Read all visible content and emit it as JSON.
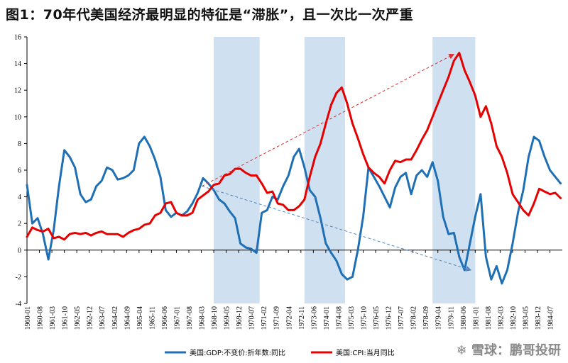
{
  "page_title": "图1：70年代美国经济最明显的特征是“滞胀”，且一次比一次严重",
  "watermark": "❄ 雪球：鹏哥投研",
  "chart_data": {
    "type": "line",
    "title": "图1：70年代美国经济最明显的特征是“滞胀”，且一次比一次严重",
    "xlabel": "",
    "ylabel": "",
    "ylim": [
      -4,
      16
    ],
    "yticks": [
      -4,
      -2,
      0,
      2,
      4,
      6,
      8,
      10,
      12,
      14,
      16
    ],
    "xlim": [
      1960.0,
      1985.08
    ],
    "xtick_labels": [
      "1960-01",
      "1960-08",
      "1961-03",
      "1961-10",
      "1962-05",
      "1962-12",
      "1963-07",
      "1964-02",
      "1964-09",
      "1965-04",
      "1965-11",
      "1966-06",
      "1967-01",
      "1967-08",
      "1968-03",
      "1968-10",
      "1969-05",
      "1969-12",
      "1970-07",
      "1971-02",
      "1971-09",
      "1972-04",
      "1972-11",
      "1973-06",
      "1974-01",
      "1974-08",
      "1975-03",
      "1975-10",
      "1976-05",
      "1976-12",
      "1977-07",
      "1978-02",
      "1978-09",
      "1979-04",
      "1979-11",
      "1980-06",
      "1981-01",
      "1981-08",
      "1982-03",
      "1982-10",
      "1983-05",
      "1983-12",
      "1984-07"
    ],
    "grid": false,
    "legend_position": "bottom",
    "colors": {
      "gdp": "#1f6fb5",
      "cpi": "#e60000",
      "shade": "#cfe0f1",
      "arrow_red": "#e03030",
      "arrow_blue": "#4f86c6"
    },
    "shaded_periods": [
      {
        "start": 1968.75,
        "end": 1970.9
      },
      {
        "start": 1973.0,
        "end": 1974.9
      },
      {
        "start": 1979.0,
        "end": 1981.0
      }
    ],
    "arrows": [
      {
        "color": "red",
        "from": [
          1968.2,
          4.8
        ],
        "to": [
          1980.0,
          14.7
        ]
      },
      {
        "color": "blue",
        "from": [
          1968.2,
          4.8
        ],
        "to": [
          1980.8,
          -1.5
        ]
      }
    ],
    "series": [
      {
        "name": "美国:GDP:不变价:折年数:同比",
        "key": "gdp",
        "x": [
          1960.0,
          1960.25,
          1960.5,
          1960.75,
          1961.0,
          1961.25,
          1961.5,
          1961.75,
          1962.0,
          1962.25,
          1962.5,
          1962.75,
          1963.0,
          1963.25,
          1963.5,
          1963.75,
          1964.0,
          1964.25,
          1964.5,
          1964.75,
          1965.0,
          1965.25,
          1965.5,
          1965.75,
          1966.0,
          1966.25,
          1966.5,
          1966.75,
          1967.0,
          1967.25,
          1967.5,
          1967.75,
          1968.0,
          1968.25,
          1968.5,
          1968.75,
          1969.0,
          1969.25,
          1969.5,
          1969.75,
          1970.0,
          1970.25,
          1970.5,
          1970.75,
          1971.0,
          1971.25,
          1971.5,
          1971.75,
          1972.0,
          1972.25,
          1972.5,
          1972.75,
          1973.0,
          1973.25,
          1973.5,
          1973.75,
          1974.0,
          1974.25,
          1974.5,
          1974.75,
          1975.0,
          1975.25,
          1975.5,
          1975.75,
          1976.0,
          1976.25,
          1976.5,
          1976.75,
          1977.0,
          1977.25,
          1977.5,
          1977.75,
          1978.0,
          1978.25,
          1978.5,
          1978.75,
          1979.0,
          1979.25,
          1979.5,
          1979.75,
          1980.0,
          1980.25,
          1980.5,
          1980.75,
          1981.0,
          1981.25,
          1981.5,
          1981.75,
          1982.0,
          1982.25,
          1982.5,
          1982.75,
          1983.0,
          1983.25,
          1983.5,
          1983.75,
          1984.0,
          1984.25,
          1984.5,
          1984.75,
          1985.0
        ],
        "values": [
          4.9,
          2.0,
          2.4,
          1.2,
          -0.7,
          1.5,
          4.8,
          7.5,
          7.0,
          6.2,
          4.2,
          3.6,
          3.8,
          4.8,
          5.2,
          6.2,
          6.0,
          5.3,
          5.4,
          5.6,
          6.0,
          8.0,
          8.5,
          7.8,
          6.8,
          5.5,
          3.0,
          2.5,
          2.8,
          2.6,
          2.9,
          3.5,
          4.3,
          5.4,
          5.0,
          4.5,
          3.8,
          3.5,
          2.9,
          2.4,
          0.5,
          0.2,
          0.1,
          -0.2,
          2.8,
          3.0,
          4.0,
          3.8,
          4.8,
          5.6,
          7.0,
          7.6,
          6.2,
          4.5,
          4.0,
          2.4,
          0.5,
          -0.2,
          -0.8,
          -1.8,
          -2.2,
          -2.0,
          0.0,
          2.5,
          6.2,
          5.5,
          4.8,
          4.0,
          3.2,
          4.7,
          5.5,
          5.8,
          4.2,
          5.6,
          6.0,
          5.5,
          6.6,
          5.2,
          2.5,
          1.2,
          1.3,
          -0.5,
          -1.5,
          0.5,
          2.5,
          4.2,
          -0.5,
          -2.2,
          -1.2,
          -2.5,
          -1.5,
          0.5,
          2.8,
          4.5,
          7.0,
          8.5,
          8.2,
          7.0,
          6.0,
          5.5,
          5.0
        ]
      },
      {
        "name": "美国:CPI:当月同比",
        "key": "cpi",
        "x": [
          1960.0,
          1960.25,
          1960.5,
          1960.75,
          1961.0,
          1961.25,
          1961.5,
          1961.75,
          1962.0,
          1962.25,
          1962.5,
          1962.75,
          1963.0,
          1963.25,
          1963.5,
          1963.75,
          1964.0,
          1964.25,
          1964.5,
          1964.75,
          1965.0,
          1965.25,
          1965.5,
          1965.75,
          1966.0,
          1966.25,
          1966.5,
          1966.75,
          1967.0,
          1967.25,
          1967.5,
          1967.75,
          1968.0,
          1968.25,
          1968.5,
          1968.75,
          1969.0,
          1969.25,
          1969.5,
          1969.75,
          1970.0,
          1970.25,
          1970.5,
          1970.75,
          1971.0,
          1971.25,
          1971.5,
          1971.75,
          1972.0,
          1972.25,
          1972.5,
          1972.75,
          1973.0,
          1973.25,
          1973.5,
          1973.75,
          1974.0,
          1974.25,
          1974.5,
          1974.75,
          1975.0,
          1975.25,
          1975.5,
          1975.75,
          1976.0,
          1976.25,
          1976.5,
          1976.75,
          1977.0,
          1977.25,
          1977.5,
          1977.75,
          1978.0,
          1978.25,
          1978.5,
          1978.75,
          1979.0,
          1979.25,
          1979.5,
          1979.75,
          1980.0,
          1980.25,
          1980.5,
          1980.75,
          1981.0,
          1981.25,
          1981.5,
          1981.75,
          1982.0,
          1982.25,
          1982.5,
          1982.75,
          1983.0,
          1983.25,
          1983.5,
          1983.75,
          1984.0,
          1984.25,
          1984.5,
          1984.75,
          1985.0
        ],
        "values": [
          1.0,
          1.7,
          1.5,
          1.4,
          1.6,
          0.9,
          1.0,
          0.8,
          1.2,
          1.3,
          1.2,
          1.3,
          1.1,
          1.3,
          1.4,
          1.2,
          1.2,
          1.2,
          1.0,
          1.3,
          1.5,
          1.6,
          1.9,
          2.0,
          2.6,
          2.8,
          3.5,
          3.6,
          2.8,
          2.6,
          2.6,
          2.8,
          3.8,
          4.1,
          4.4,
          4.9,
          5.0,
          5.6,
          5.7,
          6.1,
          6.1,
          5.8,
          5.6,
          5.6,
          5.0,
          4.3,
          4.4,
          3.5,
          3.4,
          3.0,
          3.0,
          3.3,
          3.8,
          5.5,
          7.0,
          8.0,
          9.5,
          10.9,
          11.8,
          12.2,
          11.0,
          9.5,
          8.4,
          7.2,
          6.2,
          5.8,
          5.5,
          5.0,
          6.0,
          6.7,
          6.6,
          6.8,
          6.8,
          7.5,
          8.3,
          9.0,
          10.0,
          11.0,
          12.0,
          13.0,
          14.2,
          14.8,
          13.5,
          12.6,
          11.6,
          10.0,
          10.8,
          9.5,
          7.8,
          7.0,
          5.8,
          4.2,
          3.6,
          3.0,
          2.6,
          3.5,
          4.6,
          4.4,
          4.2,
          4.3,
          3.9
        ]
      }
    ]
  }
}
